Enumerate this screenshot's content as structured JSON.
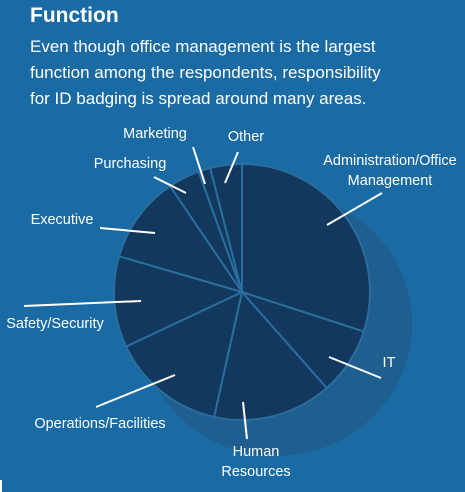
{
  "header": {
    "title": "Function",
    "subtitle_lines": [
      "Even though office management is the largest",
      "function among the respondents, responsibility",
      "for ID badging is spread around many areas."
    ]
  },
  "colors": {
    "background": "#1a6aa3",
    "slice": "#12385d",
    "slice_border": "#2b6d9e",
    "shadow": "#1e5f90",
    "text": "#ffffff"
  },
  "chart_data": {
    "type": "pie",
    "style": "3d-tilted",
    "title": "",
    "labels": [
      {
        "name": "Administration/Office Management",
        "lines": [
          "Administration/Office",
          "Management"
        ]
      },
      {
        "name": "IT",
        "lines": [
          "IT"
        ]
      },
      {
        "name": "Human Resources",
        "lines": [
          "Human",
          "Resources"
        ]
      },
      {
        "name": "Operations/Facilities",
        "lines": [
          "Operations/Facilities"
        ]
      },
      {
        "name": "Safety/Security",
        "lines": [
          "Safety/Security"
        ]
      },
      {
        "name": "Executive",
        "lines": [
          "Executive"
        ]
      },
      {
        "name": "Purchasing",
        "lines": [
          "Purchasing"
        ]
      },
      {
        "name": "Marketing",
        "lines": [
          "Marketing"
        ]
      },
      {
        "name": "Other",
        "lines": [
          "Other"
        ]
      }
    ],
    "values": [
      30.0,
      8.5,
      15.0,
      14.5,
      11.5,
      11.0,
      4.0,
      1.5,
      4.0
    ],
    "legend": "none"
  }
}
